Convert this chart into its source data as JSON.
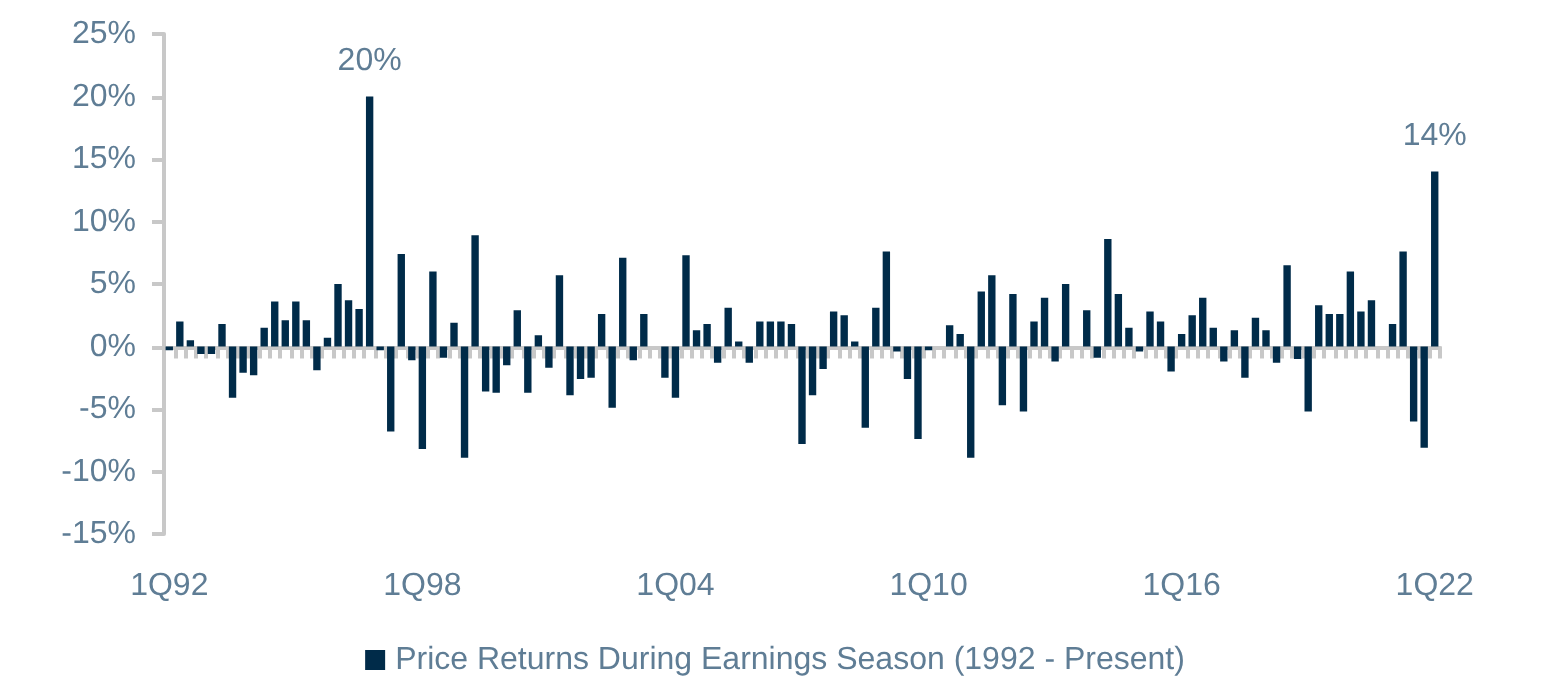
{
  "chart_data": {
    "type": "bar",
    "categories": [
      "1Q92",
      null,
      null,
      null,
      null,
      null,
      null,
      null,
      null,
      null,
      null,
      null,
      null,
      null,
      null,
      null,
      null,
      null,
      null,
      null,
      null,
      null,
      null,
      null,
      "1Q98",
      null,
      null,
      null,
      null,
      null,
      null,
      null,
      null,
      null,
      null,
      null,
      null,
      null,
      null,
      null,
      null,
      null,
      null,
      null,
      null,
      null,
      null,
      null,
      "1Q04",
      null,
      null,
      null,
      null,
      null,
      null,
      null,
      null,
      null,
      null,
      null,
      null,
      null,
      null,
      null,
      null,
      null,
      null,
      null,
      null,
      null,
      null,
      null,
      "1Q10",
      null,
      null,
      null,
      null,
      null,
      null,
      null,
      null,
      null,
      null,
      null,
      null,
      null,
      null,
      null,
      null,
      null,
      null,
      null,
      null,
      null,
      null,
      null,
      "1Q16",
      null,
      null,
      null,
      null,
      null,
      null,
      null,
      null,
      null,
      null,
      null,
      null,
      null,
      null,
      null,
      null,
      null,
      null,
      null,
      null,
      null,
      null,
      null,
      "1Q22"
    ],
    "series": [
      {
        "name": "Price Returns During Earnings Season (1992 - Present)",
        "color": "#002b49",
        "values": [
          -0.3,
          2.0,
          0.5,
          -0.6,
          -0.6,
          1.8,
          -4.1,
          -2.1,
          -2.3,
          1.5,
          3.6,
          2.1,
          3.6,
          2.1,
          -1.9,
          0.7,
          5.0,
          3.7,
          3.0,
          20,
          -0.3,
          -6.8,
          7.4,
          -1.1,
          -8.2,
          6.0,
          -0.9,
          1.9,
          -8.9,
          8.9,
          -3.6,
          -3.7,
          -1.5,
          2.9,
          -3.7,
          0.9,
          -1.7,
          5.7,
          -3.9,
          -2.6,
          -2.5,
          2.6,
          -4.9,
          7.1,
          -1.1,
          2.6,
          0,
          -2.5,
          -4.1,
          7.3,
          1.3,
          1.8,
          -1.3,
          3.1,
          0.4,
          -1.3,
          2.0,
          2.0,
          2.0,
          1.8,
          -7.8,
          -3.9,
          -1.8,
          2.8,
          2.5,
          0.4,
          -6.5,
          3.1,
          7.6,
          -0.4,
          -2.6,
          -7.4,
          -0.3,
          0,
          1.7,
          1.0,
          -8.9,
          4.4,
          5.7,
          -4.7,
          4.2,
          -5.2,
          2.0,
          3.9,
          -1.2,
          5.0,
          0,
          2.9,
          -0.9,
          8.6,
          4.2,
          1.5,
          -0.4,
          2.8,
          2.0,
          -2.0,
          1.0,
          2.5,
          3.9,
          1.5,
          -1.2,
          1.3,
          -2.5,
          2.3,
          1.3,
          -1.3,
          6.5,
          -1.0,
          -5.2,
          3.3,
          2.6,
          2.6,
          6.0,
          2.8,
          3.7,
          0,
          1.8,
          7.6,
          -6.0,
          -8.1,
          14
        ],
        "value_labels": [
          null,
          null,
          null,
          null,
          null,
          null,
          null,
          null,
          null,
          null,
          null,
          null,
          null,
          null,
          null,
          null,
          null,
          null,
          null,
          "20%",
          null,
          null,
          null,
          null,
          null,
          null,
          null,
          null,
          null,
          null,
          null,
          null,
          null,
          null,
          null,
          null,
          null,
          null,
          null,
          null,
          null,
          null,
          null,
          null,
          null,
          null,
          null,
          null,
          null,
          null,
          null,
          null,
          null,
          null,
          null,
          null,
          null,
          null,
          null,
          null,
          null,
          null,
          null,
          null,
          null,
          null,
          null,
          null,
          null,
          null,
          null,
          null,
          null,
          null,
          null,
          null,
          null,
          null,
          null,
          null,
          null,
          null,
          null,
          null,
          null,
          null,
          null,
          null,
          null,
          null,
          null,
          null,
          null,
          null,
          null,
          null,
          null,
          null,
          null,
          null,
          null,
          null,
          null,
          null,
          null,
          null,
          null,
          null,
          null,
          null,
          null,
          null,
          null,
          null,
          null,
          null,
          null,
          null,
          null,
          null,
          "14%"
        ]
      }
    ],
    "ylim": [
      -15,
      25
    ],
    "yticks": [
      {
        "value": -15,
        "label": "-15%"
      },
      {
        "value": -10,
        "label": "-10%"
      },
      {
        "value": -5,
        "label": "-5%"
      },
      {
        "value": 0,
        "label": "0%"
      },
      {
        "value": 5,
        "label": "5%"
      },
      {
        "value": 10,
        "label": "10%"
      },
      {
        "value": 15,
        "label": "15%"
      },
      {
        "value": 20,
        "label": "20%"
      },
      {
        "value": 25,
        "label": "25%"
      }
    ],
    "legend": "bottom"
  }
}
